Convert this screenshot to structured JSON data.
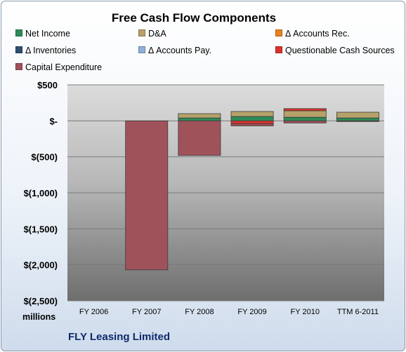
{
  "chart_data": {
    "type": "bar",
    "stacked": true,
    "title": "Free Cash Flow Components",
    "categories": [
      "FY 2006",
      "FY 2007",
      "FY 2008",
      "FY 2009",
      "FY 2010",
      "TTM 6-2011"
    ],
    "ylim": [
      -2500,
      500
    ],
    "ytick_values": [
      500,
      0,
      -500,
      -1000,
      -1500,
      -2000,
      -2500
    ],
    "ytick_labels": [
      "$500",
      "$-",
      "$(500)",
      "$(1,000)",
      "$(1,500)",
      "$(2,000)",
      "$(2,500)"
    ],
    "unit_label": "millions",
    "grid": true,
    "legend_position": "top",
    "series": [
      {
        "name": "Net Income",
        "color": "#2e8b57",
        "values": [
          0,
          0,
          40,
          60,
          50,
          40
        ]
      },
      {
        "name": "D&A",
        "color": "#b5a26a",
        "values": [
          0,
          0,
          60,
          70,
          90,
          80
        ]
      },
      {
        "name": "Δ Accounts Rec.",
        "color": "#e8821e",
        "values": [
          0,
          0,
          0,
          0,
          0,
          0
        ]
      },
      {
        "name": "Δ Inventories",
        "color": "#2f4f6f",
        "values": [
          0,
          0,
          0,
          0,
          0,
          0
        ]
      },
      {
        "name": "Δ Accounts Pay.",
        "color": "#8fb0d8",
        "values": [
          0,
          0,
          0,
          0,
          0,
          0
        ]
      },
      {
        "name": "Questionable Cash Sources",
        "color": "#d9322e",
        "values": [
          0,
          0,
          0,
          -40,
          30,
          0
        ]
      },
      {
        "name": "Capital Expenditure",
        "color": "#a0525a",
        "values": [
          0,
          -2070,
          -480,
          -30,
          -30,
          -10
        ]
      }
    ]
  },
  "company_name": "FLY Leasing Limited"
}
